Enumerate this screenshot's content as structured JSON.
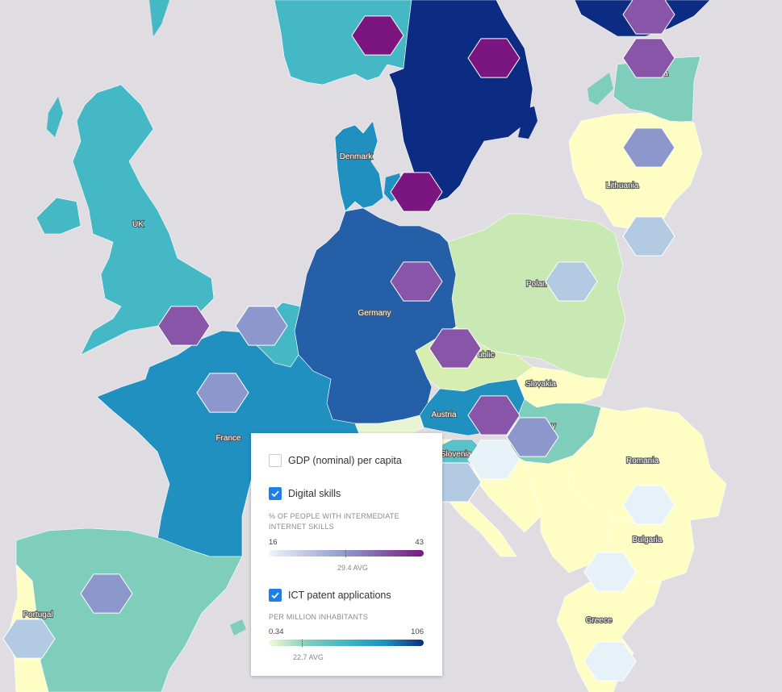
{
  "map": {
    "background": "#e0dde2",
    "countries": [
      {
        "name": "UK",
        "fill": "#44b8c5"
      },
      {
        "name": "Denmark",
        "fill": "#2090c0"
      },
      {
        "name": "Germany",
        "fill": "#255fa8"
      },
      {
        "name": "France",
        "fill": "#2090c0"
      },
      {
        "name": "Poland",
        "fill": "#c8e8b4"
      },
      {
        "name": "Slovakia",
        "fill": "#fefec4"
      },
      {
        "name": "Austria",
        "fill": "#2090c0"
      },
      {
        "name": "Slovenia",
        "fill": "#5cc0c8"
      },
      {
        "name": "Romania",
        "fill": "#fefec4"
      },
      {
        "name": "Bulgaria",
        "fill": "#fefec4"
      },
      {
        "name": "Greece",
        "fill": "#fefec4"
      },
      {
        "name": "Portugal",
        "fill": "#fefec4"
      },
      {
        "name": "Lithuania",
        "fill": "#fefec4"
      }
    ],
    "labels": {
      "uk": "UK",
      "denmark": "Denmark",
      "germany": "Germany",
      "france": "France",
      "poland": "Polan",
      "czech": "ublic",
      "slovakia": "Slovakia",
      "austria": "Austria",
      "slovenia": "Slovenia",
      "hungary": "y",
      "romania": "Romania",
      "bulgaria": "Bulgaria",
      "greece": "Greece",
      "portugal": "Portugal",
      "lithuania": "Lithuania",
      "estonia": "a"
    },
    "hex_colors": {
      "high": "#7b1680",
      "upper": "#8855a8",
      "mid": "#8c98cb",
      "low": "#b2cbe2",
      "lowest": "#e6f2f7"
    }
  },
  "legend": {
    "gdp": {
      "label": "GDP (nominal) per capita",
      "checked": false
    },
    "digital": {
      "label": "Digital skills",
      "checked": true,
      "sub": "% OF PEOPLE WITH INTERMEDIATE INTERNET SKILLS",
      "min": "16",
      "max": "43",
      "avg_label": "29.4 AVG",
      "avg_value": 29.4,
      "gradient": [
        "#eef4fa",
        "#8c98cb",
        "#7b1680"
      ]
    },
    "ict": {
      "label": "ICT patent applications",
      "checked": true,
      "sub": "PER MILLION INHABITANTS",
      "min": "0.34",
      "max": "106",
      "avg_label": "22.7 AVG",
      "avg_value": 22.7,
      "gradient": [
        "#f4fbd0",
        "#7fcdbb",
        "#41b6c4",
        "#1d91c0",
        "#0c2c84"
      ]
    }
  }
}
